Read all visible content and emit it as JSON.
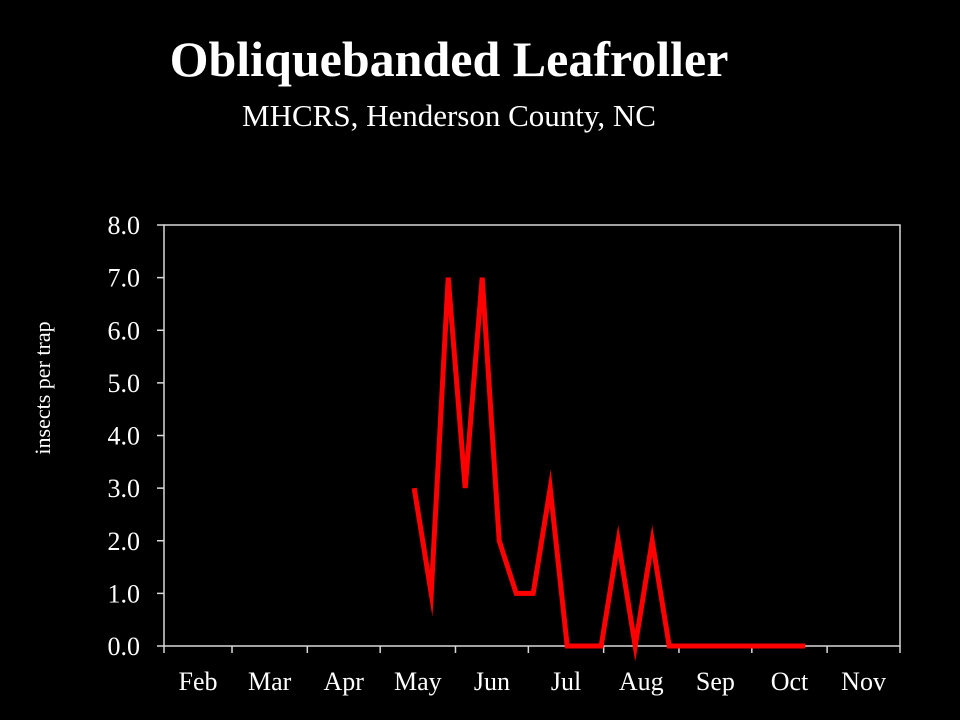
{
  "chart_data": {
    "type": "line",
    "title": "Obliquebanded Leafroller",
    "subtitle": "MHCRS, Henderson County, NC",
    "xlabel": "",
    "ylabel": "insects per trap",
    "ylim": [
      0,
      8
    ],
    "y_ticks": [
      "0.0",
      "1.0",
      "2.0",
      "3.0",
      "4.0",
      "5.0",
      "6.0",
      "7.0",
      "8.0"
    ],
    "x_ticks": [
      "Feb",
      "Mar",
      "Apr",
      "May",
      "Jun",
      "Jul",
      "Aug",
      "Sep",
      "Oct",
      "Nov"
    ],
    "grid": false,
    "legend": "none",
    "series": [
      {
        "color": "#ff0000",
        "x": [
          "May 15",
          "May 22",
          "May 29",
          "Jun 5",
          "Jun 12",
          "Jun 19",
          "Jun 26",
          "Jul 3",
          "Jul 10",
          "Jul 17",
          "Jul 24",
          "Jul 31",
          "Aug 7",
          "Aug 14",
          "Aug 21",
          "Aug 28",
          "Sep 4",
          "Sep 11",
          "Sep 18",
          "Sep 25",
          "Oct 2",
          "Oct 9",
          "Oct 16",
          "Oct 23"
        ],
        "values": [
          3,
          1,
          7,
          3,
          7,
          2,
          1,
          1,
          3,
          0,
          0,
          0,
          2,
          0,
          2,
          0,
          0,
          0,
          0,
          0,
          0,
          0,
          0,
          0
        ]
      }
    ]
  }
}
